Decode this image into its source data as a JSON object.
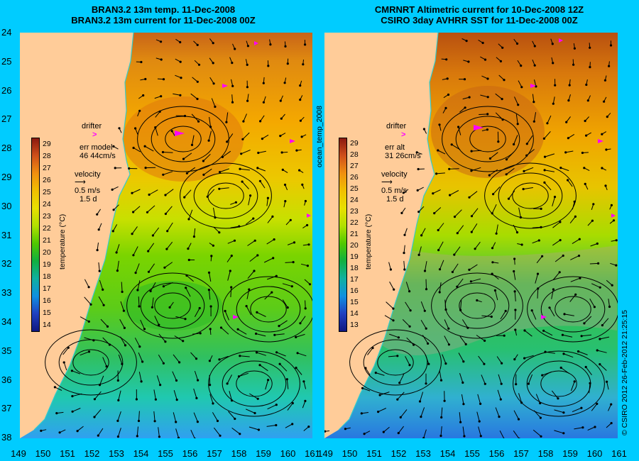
{
  "left_panel": {
    "title_line1": "BRAN3.2 13m temp. 11-Dec-2008",
    "title_line2": "BRAN3.2 13m current for 11-Dec-2008 00Z",
    "legend": {
      "drifter": "drifter",
      "err_label": "err model",
      "err_value": "46 44cm/s",
      "velocity": "velocity",
      "speed": "0.5 m/s",
      "duration": "1.5 d"
    },
    "colorbar": {
      "ticks": [
        "29",
        "28",
        "27",
        "26",
        "25",
        "24",
        "23",
        "22",
        "21",
        "20",
        "19",
        "18",
        "17",
        "16",
        "15",
        "14"
      ],
      "label": "temperature (°C)"
    }
  },
  "right_panel": {
    "title_line1": "CMRNRT Altimetric current for 10-Dec-2008 12Z",
    "title_line2": "CSIRO 3day AVHRR SST for 11-Dec-2008 00Z",
    "legend": {
      "drifter": "drifter",
      "err_label": "err alt",
      "err_value": "31 26cm/s",
      "velocity": "velocity",
      "speed": "0.5 m/s",
      "duration": "1.5 d"
    },
    "colorbar": {
      "ticks": [
        "29",
        "28",
        "27",
        "26",
        "25",
        "24",
        "23",
        "22",
        "21",
        "20",
        "19",
        "18",
        "17",
        "16",
        "15",
        "14",
        "13"
      ],
      "label": "temperature (°C)"
    }
  },
  "side_label": "ocean_temp_2008",
  "credit": "© CSIRO 2012  26-Feb-2012 21:25:15",
  "lat_ticks": [
    "24",
    "25",
    "26",
    "27",
    "28",
    "29",
    "30",
    "31",
    "32",
    "33",
    "34",
    "35",
    "36",
    "37",
    "38"
  ],
  "lon_ticks_left": [
    "149",
    "150",
    "151",
    "152",
    "153",
    "154",
    "155",
    "156",
    "157",
    "158",
    "159",
    "160",
    "161"
  ],
  "lon_ticks_right": [
    "149",
    "150",
    "151",
    "152",
    "153",
    "154",
    "155",
    "156",
    "157",
    "158",
    "159",
    "160",
    "161"
  ],
  "colors": {
    "background": "#00ccff",
    "land": "#ffcc99",
    "drifter": "#ff00ff",
    "coast_line": "#33cccc"
  }
}
